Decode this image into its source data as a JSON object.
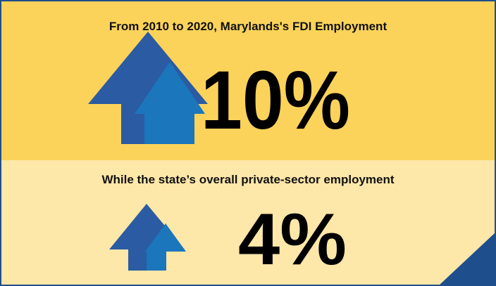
{
  "top": {
    "title": "From 2010 to 2020, Marylands's FDI Employment",
    "figure": "10%"
  },
  "bottom": {
    "title": "While the state’s overall private-sector employment",
    "figure": "4%"
  }
}
